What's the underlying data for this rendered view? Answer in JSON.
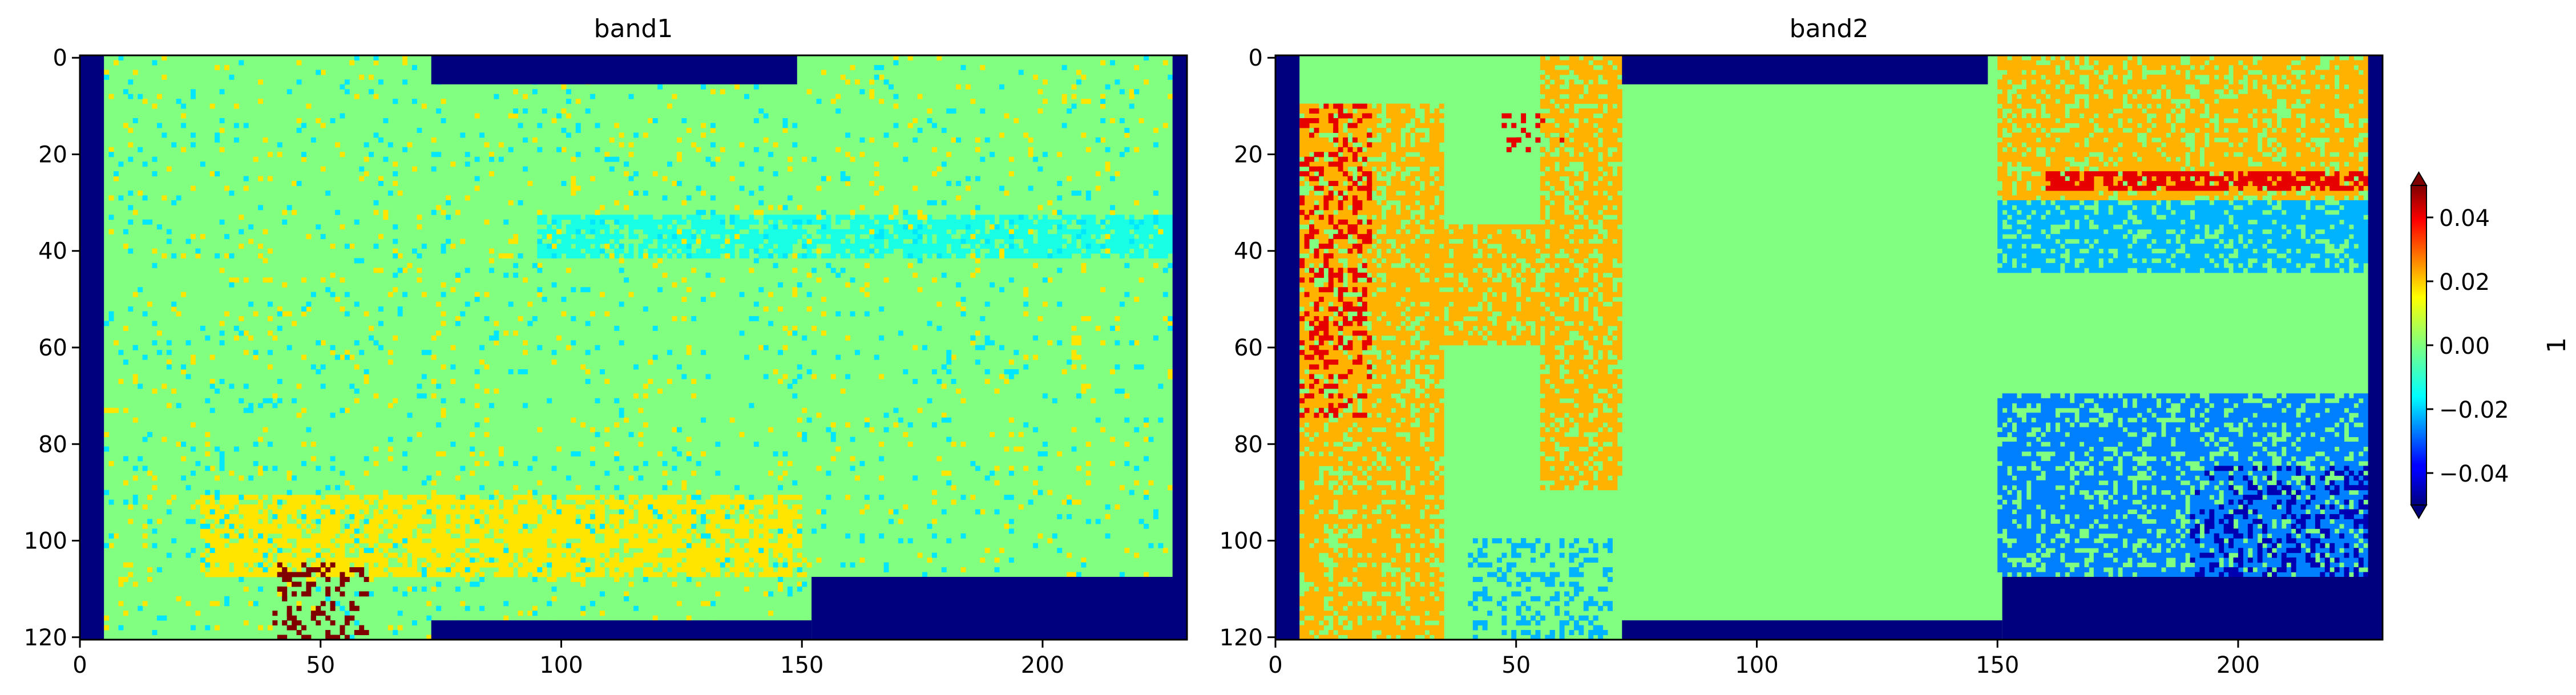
{
  "chart_data": [
    {
      "type": "heatmap",
      "title": "band1",
      "x_ticks": [
        0,
        50,
        100,
        150,
        200
      ],
      "y_ticks": [
        0,
        20,
        40,
        60,
        80,
        100,
        120
      ],
      "x_range": [
        0,
        230
      ],
      "y_range": [
        121,
        0
      ],
      "nodata_regions": [
        {
          "x": [
            0,
            5
          ],
          "y": [
            0,
            121
          ]
        },
        {
          "x": [
            227,
            230
          ],
          "y": [
            0,
            121
          ]
        },
        {
          "x": [
            73,
            149
          ],
          "y": [
            0,
            6
          ]
        },
        {
          "x": [
            73,
            152
          ],
          "y": [
            117,
            121
          ]
        },
        {
          "x": [
            152,
            230
          ],
          "y": [
            108,
            121
          ]
        }
      ],
      "dominant_value": 0.0,
      "features": [
        {
          "desc": "slightly negative streak",
          "x": [
            95,
            230
          ],
          "y": [
            33,
            42
          ],
          "value": -0.01
        },
        {
          "desc": "slightly positive band",
          "x": [
            25,
            150
          ],
          "y": [
            91,
            108
          ],
          "value": 0.015
        },
        {
          "desc": "positive speckle",
          "x": [
            5,
            230
          ],
          "y": [
            0,
            121
          ],
          "value": 0.015
        },
        {
          "desc": "negative speckle",
          "x": [
            5,
            230
          ],
          "y": [
            0,
            121
          ],
          "value": -0.015
        },
        {
          "desc": "strong outliers",
          "x": [
            40,
            60
          ],
          "y": [
            105,
            121
          ],
          "value": 0.05
        }
      ]
    },
    {
      "type": "heatmap",
      "title": "band2",
      "x_ticks": [
        0,
        50,
        100,
        150,
        200
      ],
      "y_ticks": [
        0,
        20,
        40,
        60,
        80,
        100,
        120
      ],
      "x_range": [
        0,
        230
      ],
      "y_range": [
        121,
        0
      ],
      "nodata_regions": [
        {
          "x": [
            0,
            5
          ],
          "y": [
            0,
            121
          ]
        },
        {
          "x": [
            227,
            230
          ],
          "y": [
            0,
            121
          ]
        },
        {
          "x": [
            72,
            148
          ],
          "y": [
            0,
            6
          ]
        },
        {
          "x": [
            72,
            151
          ],
          "y": [
            117,
            121
          ]
        },
        {
          "x": [
            151,
            230
          ],
          "y": [
            108,
            121
          ]
        }
      ],
      "dominant_value": 0.0,
      "features": [
        {
          "desc": "yellow columns left",
          "x": [
            5,
            35
          ],
          "y": [
            10,
            121
          ],
          "value": 0.02
        },
        {
          "desc": "red blobs left",
          "x": [
            5,
            20
          ],
          "y": [
            10,
            75
          ],
          "value": 0.04
        },
        {
          "desc": "red blob",
          "x": [
            47,
            60
          ],
          "y": [
            12,
            20
          ],
          "value": 0.04
        },
        {
          "desc": "yellow block",
          "x": [
            55,
            72
          ],
          "y": [
            0,
            90
          ],
          "value": 0.02
        },
        {
          "desc": "yellow block",
          "x": [
            32,
            55
          ],
          "y": [
            35,
            60
          ],
          "value": 0.02
        },
        {
          "desc": "yellow band top right",
          "x": [
            150,
            228
          ],
          "y": [
            0,
            30
          ],
          "value": 0.02
        },
        {
          "desc": "red streak",
          "x": [
            160,
            228
          ],
          "y": [
            24,
            28
          ],
          "value": 0.04
        },
        {
          "desc": "cyan band right",
          "x": [
            150,
            228
          ],
          "y": [
            30,
            45
          ],
          "value": -0.02
        },
        {
          "desc": "cyan blocks lower right",
          "x": [
            150,
            228
          ],
          "y": [
            70,
            108
          ],
          "value": -0.025
        },
        {
          "desc": "blue spots lower right",
          "x": [
            190,
            228
          ],
          "y": [
            85,
            108
          ],
          "value": -0.045
        },
        {
          "desc": "cyan patches bottom left",
          "x": [
            40,
            70
          ],
          "y": [
            100,
            121
          ],
          "value": -0.02
        }
      ]
    }
  ],
  "colorbar": {
    "colormap": "jet",
    "min": -0.05,
    "max": 0.05,
    "ticks": [
      {
        "value": 0.04,
        "label": "0.04"
      },
      {
        "value": 0.02,
        "label": "0.02"
      },
      {
        "value": 0.0,
        "label": "0.00"
      },
      {
        "value": -0.02,
        "label": "−0.02"
      },
      {
        "value": -0.04,
        "label": "−0.04"
      }
    ],
    "label": "1",
    "extend": "both"
  },
  "colors": {
    "nodata": "#00007f",
    "frame": "#000000"
  }
}
